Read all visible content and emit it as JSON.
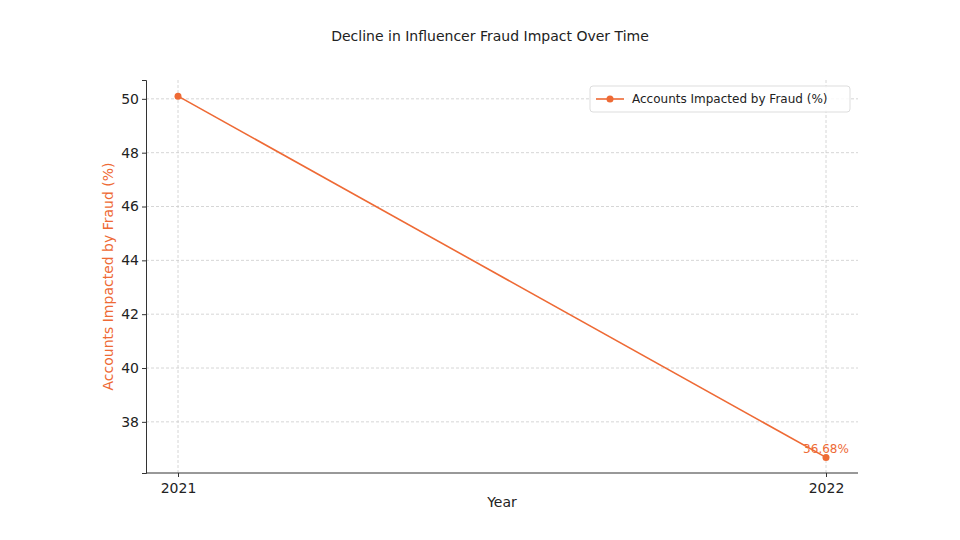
{
  "chart_data": {
    "type": "line",
    "title": "Decline in Influencer Fraud Impact Over Time",
    "x_label": "Year",
    "y_label": "Accounts Impacted by Fraud (%)",
    "categories": [
      "2021",
      "2022"
    ],
    "series": [
      {
        "name": "Accounts Impacted by Fraud (%)",
        "color": "#ee6a35",
        "marker": "circle",
        "values": [
          50.1,
          36.68
        ],
        "value_labels": [
          null,
          "36.68%"
        ]
      }
    ],
    "ylim": [
      36.1,
      50.7
    ],
    "yticks": [
      38,
      40,
      42,
      44,
      46,
      48,
      50
    ],
    "grid": true,
    "legend": "upper right",
    "data_labels": true
  }
}
